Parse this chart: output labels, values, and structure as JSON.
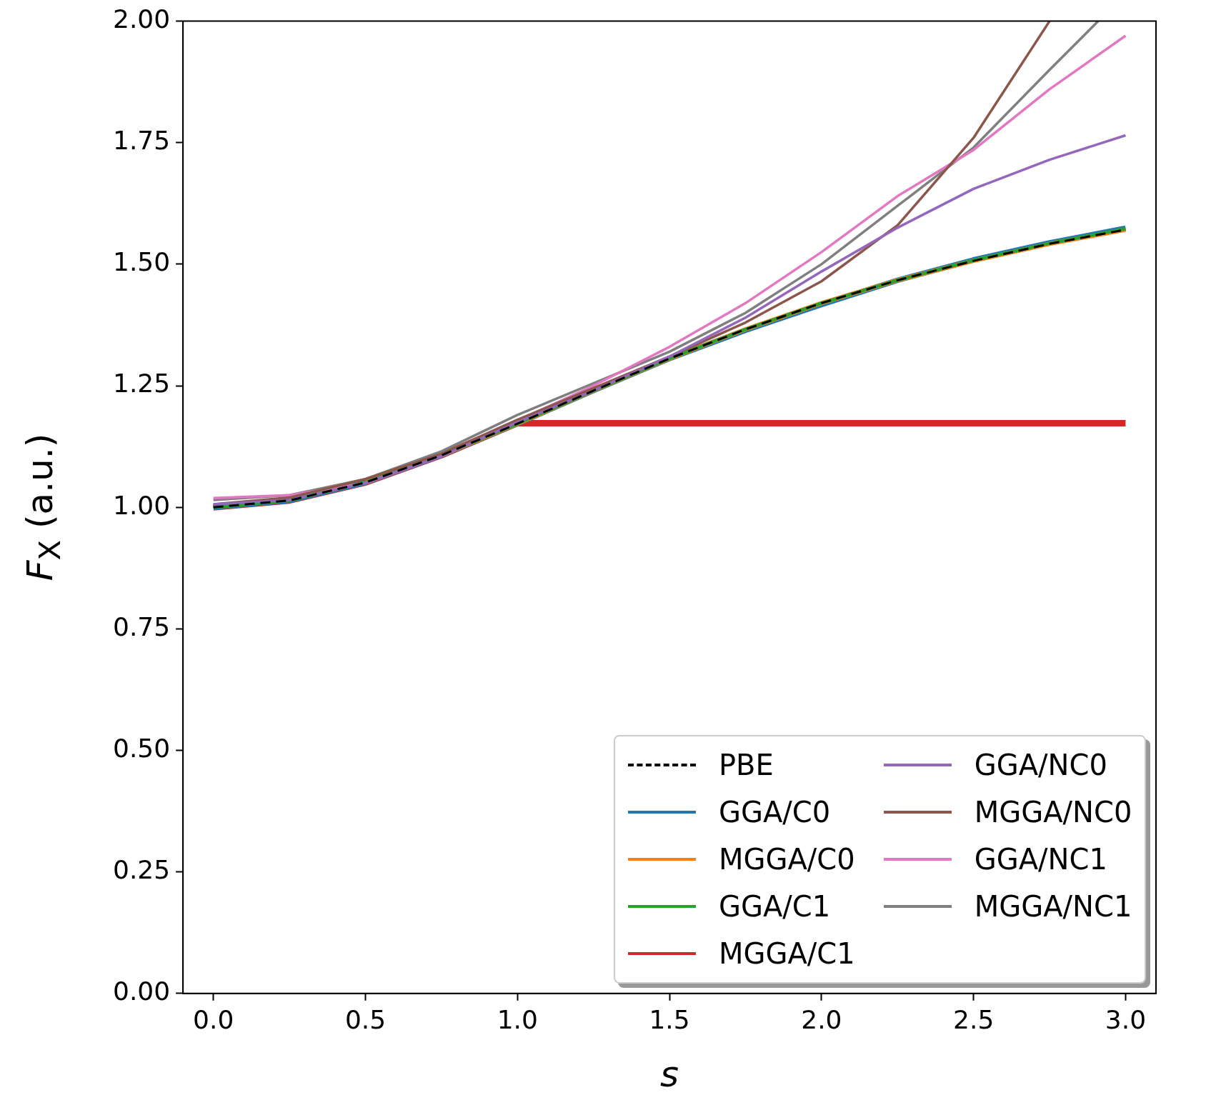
{
  "chart_data": {
    "type": "line",
    "xlabel": "s",
    "ylabel": "F$_{X}$ (a.u.)",
    "xlim": [
      -0.1,
      3.1
    ],
    "xticks": [
      {
        "value": 0,
        "label": "0.0"
      },
      0.5,
      {
        "value": 1,
        "label": "1.0"
      },
      1.5,
      {
        "value": 2,
        "label": "2.0"
      },
      2.5,
      {
        "value": 3,
        "label": "3.0"
      }
    ],
    "ylim": [
      0,
      2
    ],
    "yticks": [
      {
        "value": 0,
        "label": "0.00"
      },
      0.25,
      {
        "value": 0.5,
        "label": "0.50"
      },
      0.75,
      {
        "value": 1,
        "label": "1.00"
      },
      1.25,
      {
        "value": 1.5,
        "label": "1.50"
      },
      1.75,
      {
        "value": 2,
        "label": "2.00"
      }
    ],
    "grid": false,
    "legend": "bottom right",
    "marker": "none",
    "x": [
      0,
      0.25,
      0.5,
      0.75,
      1.0,
      1.25,
      1.5,
      1.75,
      2.0,
      2.25,
      2.5,
      2.75,
      3.0
    ],
    "series": [
      {
        "name": "PBE",
        "color": "#000000",
        "line_style": "dashed",
        "values": [
          1.0,
          1.014,
          1.051,
          1.107,
          1.172,
          1.24,
          1.306,
          1.366,
          1.42,
          1.467,
          1.507,
          1.542,
          1.571
        ]
      },
      {
        "name": "GGA/C0",
        "color": "#1f77b4",
        "values": [
          1.0,
          1.014,
          1.051,
          1.107,
          1.172,
          1.24,
          1.306,
          1.364,
          1.417,
          1.467,
          1.509,
          1.544,
          1.574
        ]
      },
      {
        "name": "MGGA/C0",
        "color": "#ff7f0e",
        "values": [
          null,
          null,
          1.051,
          1.107,
          1.172,
          1.24,
          1.306,
          1.366,
          1.42,
          1.467,
          1.507,
          1.542,
          1.571
        ]
      },
      {
        "name": "GGA/C1",
        "color": "#2ca02c",
        "values": [
          1.0,
          1.014,
          1.051,
          1.107,
          1.172,
          1.24,
          1.306,
          1.366,
          1.42,
          1.467,
          1.508,
          1.543,
          1.573
        ]
      },
      {
        "name": "MGGA/C1",
        "color": "#d62728",
        "x": [
          0,
          0.25,
          0.5,
          0.75,
          1.0,
          3.0
        ],
        "values": [
          1.0,
          1.014,
          1.051,
          1.107,
          1.173,
          1.173
        ]
      },
      {
        "name": "GGA/NC0",
        "color": "#9467bd",
        "values": [
          1.006,
          1.015,
          1.05,
          1.105,
          1.175,
          1.24,
          1.31,
          1.39,
          1.485,
          1.575,
          1.655,
          1.715,
          1.765
        ]
      },
      {
        "name": "MGGA/NC0",
        "color": "#8c564b",
        "x": [
          0,
          0.25,
          0.5,
          0.75,
          1.0,
          1.25,
          1.5,
          1.75,
          2.0,
          2.25,
          2.5,
          2.75
        ],
        "values": [
          1.006,
          1.02,
          1.058,
          1.11,
          1.18,
          1.245,
          1.31,
          1.38,
          1.465,
          1.58,
          1.76,
          2.0
        ]
      },
      {
        "name": "GGA/NC1",
        "color": "#e377c2",
        "values": [
          1.019,
          1.025,
          1.05,
          1.105,
          1.178,
          1.25,
          1.33,
          1.42,
          1.525,
          1.64,
          1.735,
          1.86,
          1.97
        ]
      },
      {
        "name": "MGGA/NC1",
        "color": "#7f7f7f",
        "x": [
          0,
          0.25,
          0.5,
          0.75,
          1.0,
          1.25,
          1.5,
          1.75,
          2.0,
          2.25,
          2.5,
          2.75,
          2.91
        ],
        "values": [
          1.015,
          1.025,
          1.058,
          1.115,
          1.19,
          1.255,
          1.32,
          1.4,
          1.5,
          1.62,
          1.74,
          1.9,
          2.0
        ]
      }
    ]
  }
}
